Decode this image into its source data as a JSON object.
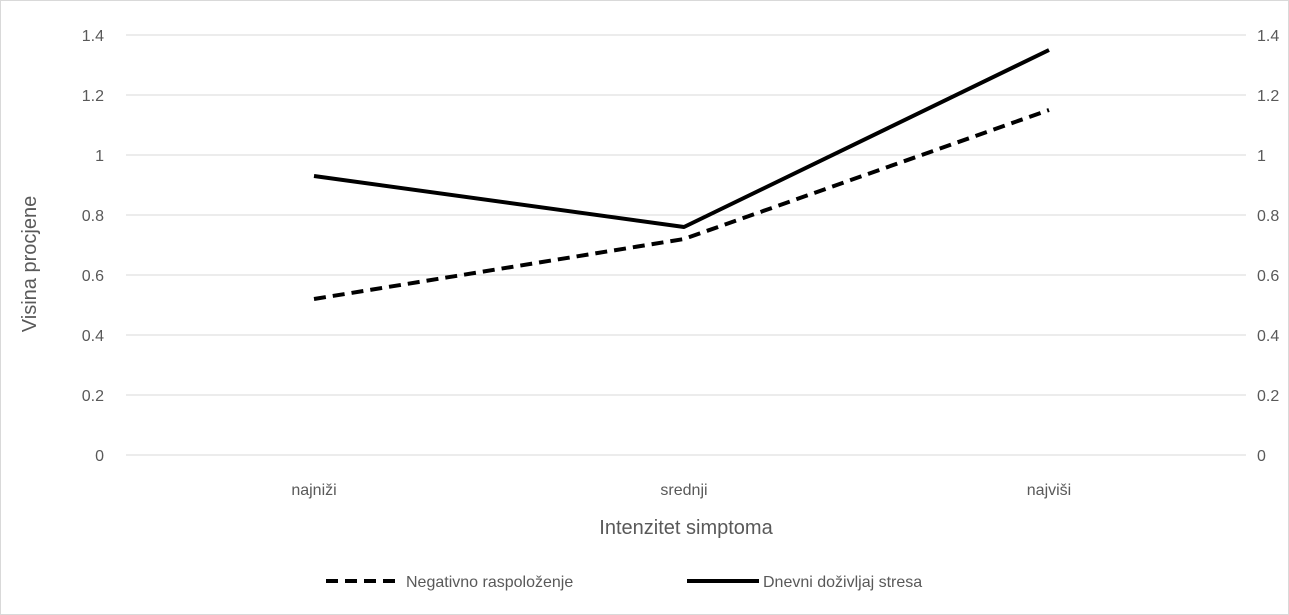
{
  "chart_data": {
    "type": "line",
    "title": "",
    "xlabel": "Intenzitet simptoma",
    "ylabel": "Visina  procjene",
    "categories": [
      "najniži",
      "srednji",
      "najviši"
    ],
    "ylim": [
      0,
      1.4
    ],
    "yticks": [
      "0",
      "0.2",
      "0.4",
      "0.6",
      "0.8",
      "1",
      "1.2",
      "1.4"
    ],
    "y2ticks": [
      "0",
      "0.2",
      "0.4",
      "0.6",
      "0.8",
      "1",
      "1.2",
      "1.4"
    ],
    "grid": true,
    "legend_position": "bottom",
    "series": [
      {
        "name": "Negativno raspoloženje",
        "values": [
          0.52,
          0.72,
          1.15
        ],
        "style": "dashed",
        "color": "#000000"
      },
      {
        "name": "Dnevni doživljaj stresa",
        "values": [
          0.93,
          0.76,
          1.35
        ],
        "style": "solid",
        "color": "#000000"
      }
    ]
  }
}
